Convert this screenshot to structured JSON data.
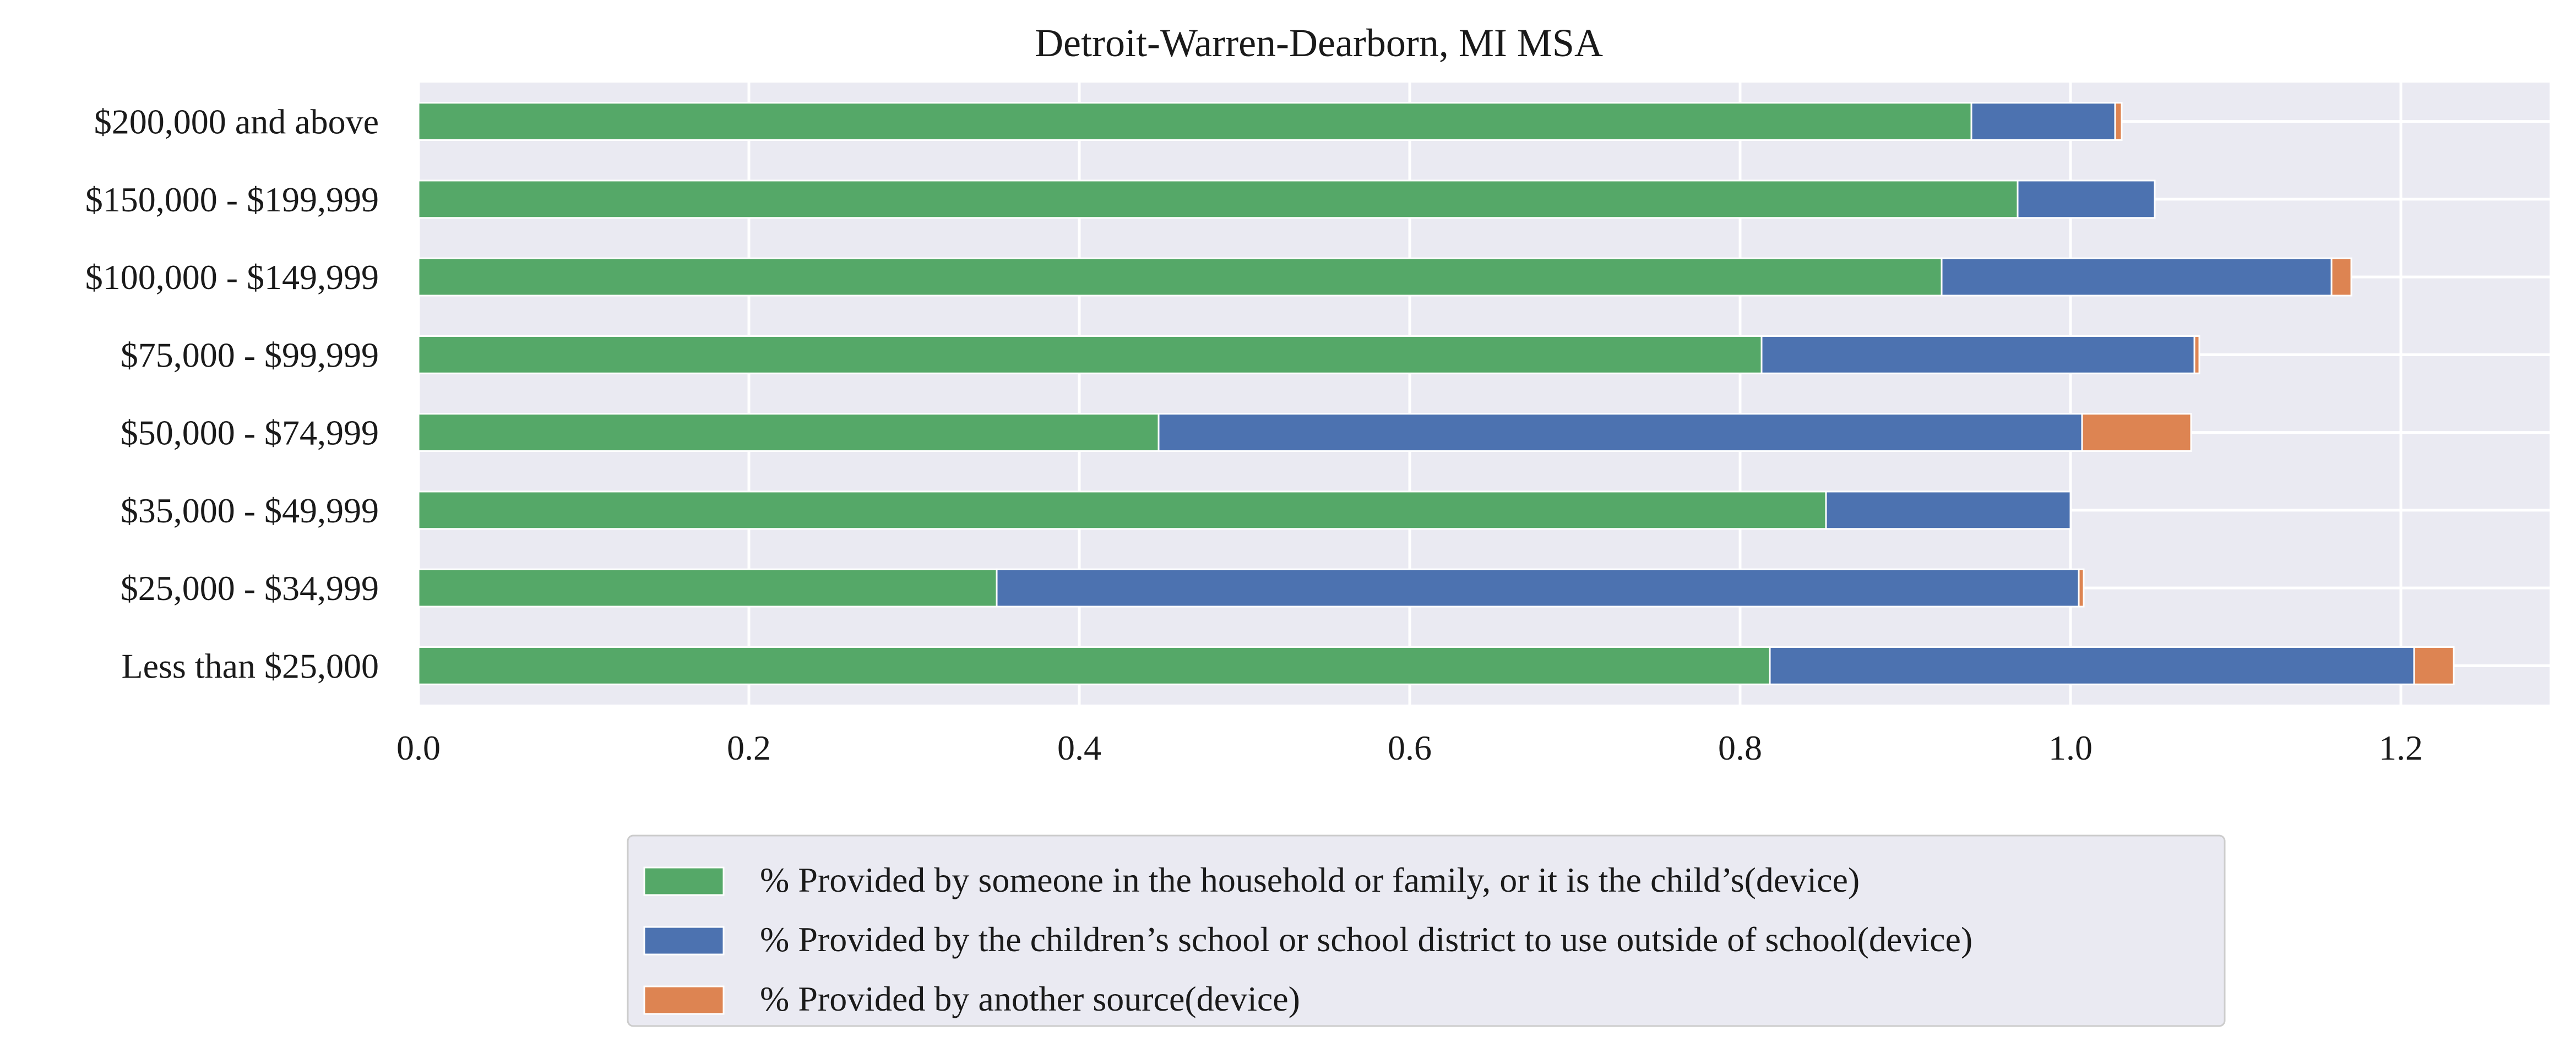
{
  "chart_data": {
    "type": "bar",
    "orientation": "horizontal",
    "stacked": true,
    "title": "Detroit-Warren-Dearborn, MI MSA",
    "categories": [
      "$200,000 and above",
      "$150,000 - $199,999",
      "$100,000 - $149,999",
      "$75,000 - $99,999",
      "$50,000 - $74,999",
      "$35,000 - $49,999",
      "$25,000 - $34,999",
      "Less than $25,000"
    ],
    "series": [
      {
        "name": "% Provided by someone in the household or family, or it is the child’s(device)",
        "color": "#55a868",
        "values": [
          0.94,
          0.968,
          0.922,
          0.813,
          0.448,
          0.852,
          0.35,
          0.818
        ]
      },
      {
        "name": "% Provided by the children’s school or school district to use outside of school(device)",
        "color": "#4c72b0",
        "values": [
          0.087,
          0.083,
          0.236,
          0.262,
          0.559,
          0.148,
          0.655,
          0.39
        ]
      },
      {
        "name": "% Provided by another source(device)",
        "color": "#dd8452",
        "values": [
          0.004,
          0.0,
          0.012,
          0.003,
          0.066,
          0.0,
          0.003,
          0.024
        ]
      }
    ],
    "xlim": [
      0,
      1.29
    ],
    "xticks": [
      "0.0",
      "0.2",
      "0.4",
      "0.6",
      "0.8",
      "1.0",
      "1.2"
    ],
    "xtick_values": [
      0,
      0.2,
      0.4,
      0.6,
      0.8,
      1.0,
      1.2
    ],
    "xlabel": "",
    "ylabel": "",
    "grid": true,
    "legend_position": "bottom-center"
  }
}
